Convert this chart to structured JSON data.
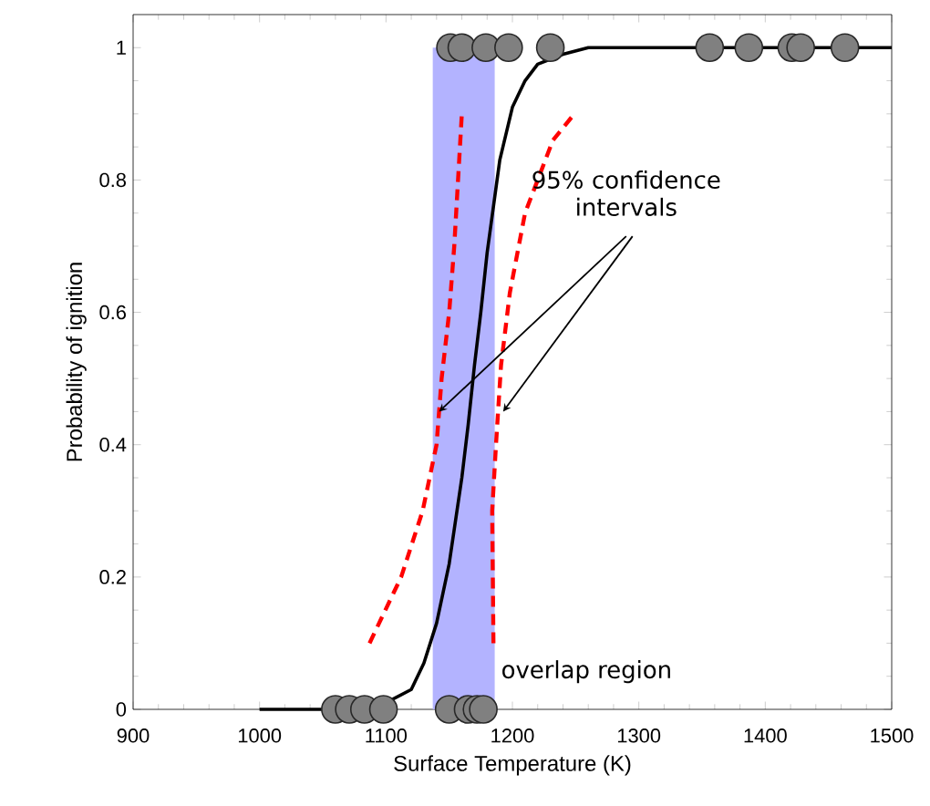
{
  "chart_data": {
    "type": "line",
    "xlabel": "Surface Temperature (K)",
    "ylabel": "Probability of ignition",
    "xlim": [
      900,
      1500
    ],
    "xticks": [
      900,
      1000,
      1100,
      1200,
      1300,
      1400,
      1500
    ],
    "ylim": [
      0,
      1.05
    ],
    "yticks": [
      0,
      0.2,
      0.4,
      0.6,
      0.8,
      1
    ],
    "series": [
      {
        "color": "#000000",
        "line_style": "solid",
        "marker": "none",
        "x": [
          1000,
          1050,
          1100,
          1120,
          1130,
          1140,
          1150,
          1160,
          1165,
          1170,
          1175,
          1180,
          1190,
          1200,
          1210,
          1220,
          1240,
          1260,
          1500
        ],
        "values": [
          0,
          0,
          0.01,
          0.03,
          0.07,
          0.13,
          0.22,
          0.35,
          0.43,
          0.52,
          0.6,
          0.69,
          0.83,
          0.91,
          0.95,
          0.975,
          0.99,
          1,
          1
        ]
      },
      {
        "color": "#ff0000",
        "line_style": "dashed",
        "marker": "none",
        "x": [
          1087,
          1112,
          1129,
          1140,
          1144,
          1150,
          1154,
          1160
        ],
        "values": [
          0.1,
          0.2,
          0.3,
          0.4,
          0.5,
          0.6,
          0.7,
          0.9
        ]
      },
      {
        "color": "#ff0000",
        "line_style": "dashed",
        "marker": "none",
        "x": [
          1185,
          1184,
          1187,
          1191,
          1198,
          1210,
          1232,
          1249
        ],
        "values": [
          0.1,
          0.3,
          0.4,
          0.52,
          0.63,
          0.75,
          0.86,
          0.9
        ]
      },
      {
        "type": "scatter",
        "color": "#808080",
        "marker": "circle",
        "x": [
          1060,
          1071,
          1083,
          1098,
          1150,
          1165,
          1172,
          1177,
          1151,
          1160,
          1179,
          1197,
          1230,
          1356,
          1387,
          1421,
          1428,
          1463
        ],
        "values": [
          0,
          0,
          0,
          0,
          0,
          0,
          0,
          0,
          1,
          1,
          1,
          1,
          1,
          1,
          1,
          1,
          1,
          1
        ]
      }
    ],
    "bands": [
      {
        "axis": "x",
        "from": 1137,
        "to": 1186,
        "color": "#b3b3ff",
        "label": "overlap region"
      }
    ],
    "annotations": [
      {
        "text": "95% confidence intervals",
        "x": 1142,
        "y": 0.45
      }
    ],
    "grid": false
  }
}
